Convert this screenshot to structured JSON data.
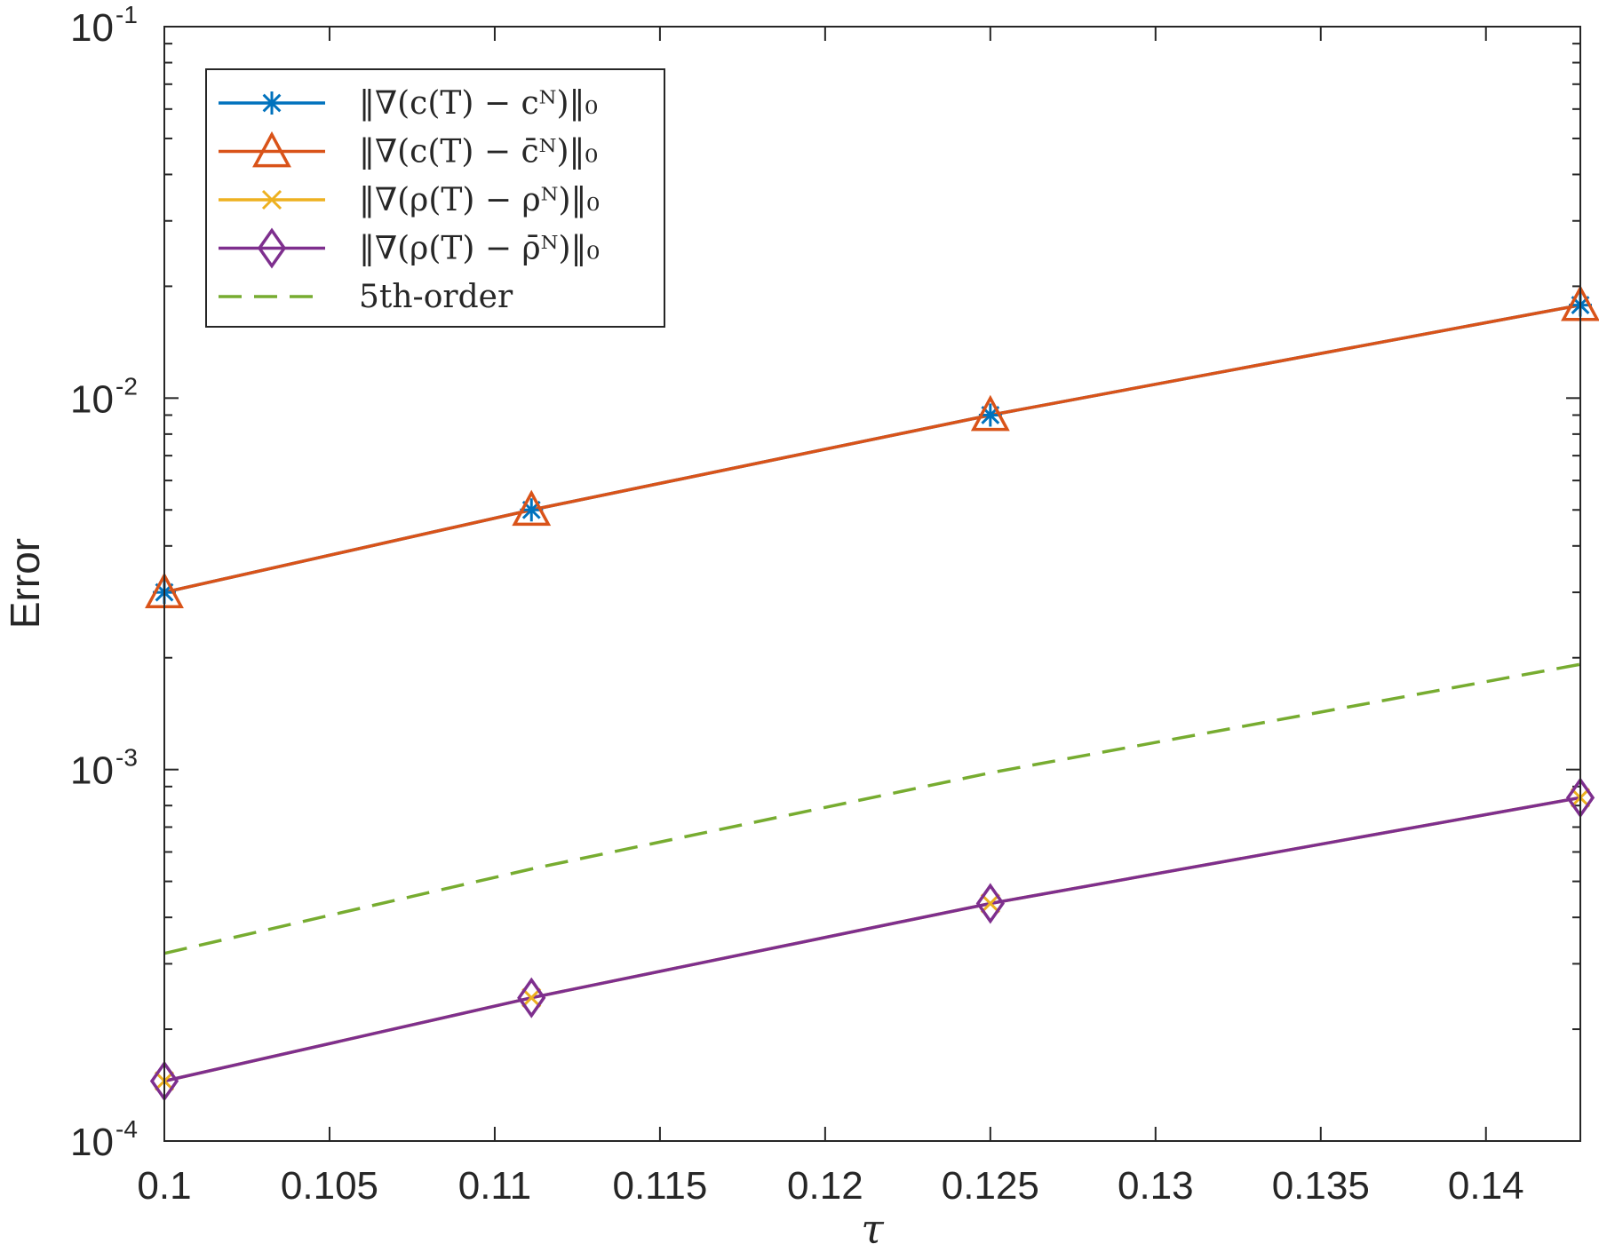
{
  "chart_data": {
    "type": "line",
    "xlabel": "τ",
    "ylabel": "Error",
    "xlim": [
      0.1,
      0.142857
    ],
    "ylim": [
      0.0001,
      0.1
    ],
    "yscale": "log",
    "x_ticks": [
      {
        "value": 0.1,
        "label": "0.1"
      },
      {
        "value": 0.105,
        "label": "0.105"
      },
      {
        "value": 0.11,
        "label": "0.11"
      },
      {
        "value": 0.115,
        "label": "0.115"
      },
      {
        "value": 0.12,
        "label": "0.12"
      },
      {
        "value": 0.125,
        "label": "0.125"
      },
      {
        "value": 0.13,
        "label": "0.13"
      },
      {
        "value": 0.135,
        "label": "0.135"
      },
      {
        "value": 0.14,
        "label": "0.14"
      }
    ],
    "y_ticks": [
      {
        "value": 0.0001,
        "base": "10",
        "exp": "-4"
      },
      {
        "value": 0.001,
        "base": "10",
        "exp": "-3"
      },
      {
        "value": 0.01,
        "base": "10",
        "exp": "-2"
      },
      {
        "value": 0.1,
        "base": "10",
        "exp": "-1"
      }
    ],
    "grid": false,
    "legend_position": "top-left",
    "x": [
      0.1,
      0.111111,
      0.125,
      0.142857
    ],
    "series": [
      {
        "name": "‖∇(c(T) − cᴺ)‖₀",
        "color": "#0072BD",
        "marker": "asterisk",
        "dash": "solid",
        "values": [
          0.003,
          0.005,
          0.009,
          0.0178
        ]
      },
      {
        "name": "‖∇(c(T) − c̄ᴺ)‖₀",
        "color": "#D95319",
        "marker": "triangle",
        "dash": "solid",
        "values": [
          0.003,
          0.005,
          0.009,
          0.0178
        ]
      },
      {
        "name": "‖∇(ρ(T) − ρᴺ)‖₀",
        "color": "#EDB120",
        "marker": "x",
        "dash": "solid",
        "values": [
          0.000145,
          0.000243,
          0.000436,
          0.00084
        ]
      },
      {
        "name": "‖∇(ρ(T) − ρ̄ᴺ)‖₀",
        "color": "#7E2F8E",
        "marker": "diamond",
        "dash": "solid",
        "values": [
          0.000145,
          0.000243,
          0.000436,
          0.00084
        ]
      },
      {
        "name": "5th-order",
        "color": "#77AC30",
        "marker": "none",
        "dash": "dashed",
        "values": [
          0.00032,
          0.00054,
          0.00098,
          0.00192
        ]
      }
    ]
  }
}
